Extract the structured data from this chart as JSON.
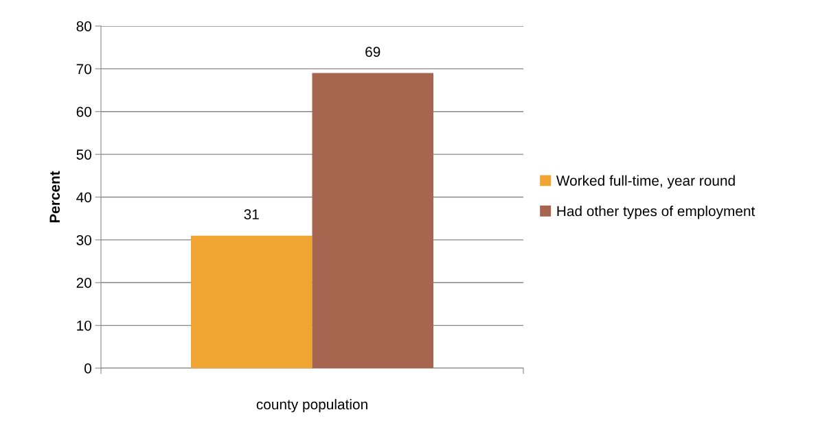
{
  "chart_data": {
    "type": "bar",
    "ylabel": "Percent",
    "categories": [
      "county population"
    ],
    "series": [
      {
        "name": "Worked full-time, year round",
        "color": "#f0a431",
        "values": [
          31
        ]
      },
      {
        "name": "Had other types of employment",
        "color": "#a5654e",
        "values": [
          69
        ]
      }
    ],
    "ylim": [
      0,
      80
    ],
    "yticks": [
      0,
      10,
      20,
      30,
      40,
      50,
      60,
      70,
      80
    ],
    "grid": "y",
    "legend": "right",
    "data_labels": true
  }
}
